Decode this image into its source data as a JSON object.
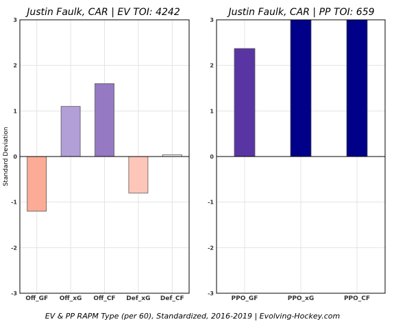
{
  "footer": "EV & PP RAPM Type (per 60), Standardized, 2016-2019    |    Evolving-Hockey.com",
  "chart_data": [
    {
      "type": "bar",
      "title": "Justin Faulk, CAR  |  EV TOI: 4242",
      "ylabel": "Standard Deviation",
      "ylim": [
        -3,
        3
      ],
      "yticks": [
        -3,
        -2,
        -1,
        0,
        1,
        2,
        3
      ],
      "grid": true,
      "categories": [
        "Off_GF",
        "Off_xG",
        "Off_CF",
        "Def_xG",
        "Def_CF"
      ],
      "values": [
        -1.2,
        1.1,
        1.6,
        -0.8,
        0.04
      ],
      "colors": [
        "#fbab96",
        "#b29fd7",
        "#9579c3",
        "#fdc6b9",
        "#f3f1f7"
      ]
    },
    {
      "type": "bar",
      "title": "Justin Faulk, CAR  |  PP TOI: 659",
      "ylabel": "",
      "ylim": [
        -3,
        3
      ],
      "yticks": [
        -3,
        -2,
        -1,
        0,
        1,
        2,
        3
      ],
      "grid": true,
      "categories": [
        "PPO_GF",
        "PPO_xG",
        "PPO_CF"
      ],
      "values": [
        2.37,
        3.0,
        3.0
      ],
      "colors": [
        "#5935a4",
        "#000088",
        "#000088"
      ]
    }
  ]
}
